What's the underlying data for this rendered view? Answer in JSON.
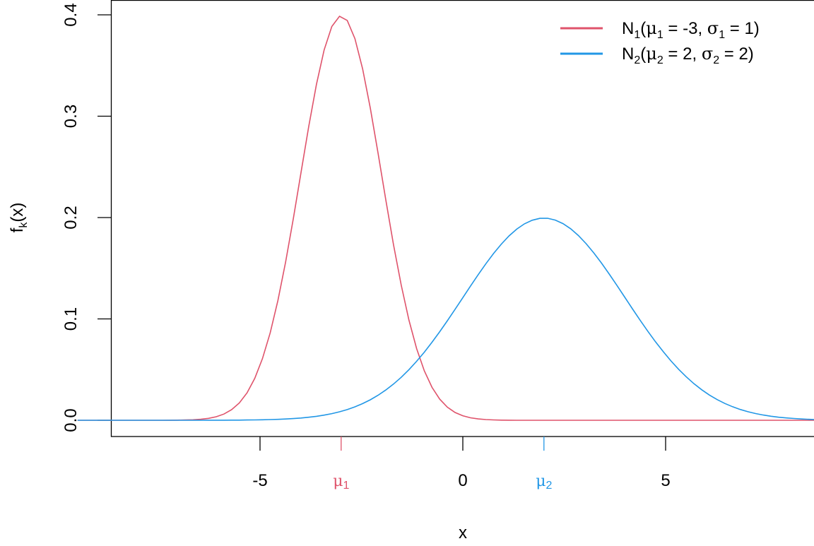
{
  "chart_data": {
    "type": "line",
    "title": "",
    "xlabel": "x",
    "ylabel": "f_k(x)",
    "xlim": [
      -9.5,
      9.5
    ],
    "ylim": [
      0,
      0.4
    ],
    "grid": false,
    "legend_position": "topright",
    "x_ticks": [
      -5,
      0,
      5
    ],
    "x_tick_labels": [
      "-5",
      "0",
      "5"
    ],
    "y_ticks": [
      0.0,
      0.1,
      0.2,
      0.3,
      0.4
    ],
    "y_tick_labels": [
      "0.0",
      "0.1",
      "0.2",
      "0.3",
      "0.4"
    ],
    "annotations": [
      {
        "type": "axis-tick",
        "x": -3,
        "label": "μ1",
        "color": "#DF536B"
      },
      {
        "type": "axis-tick",
        "x": 2,
        "label": "μ2",
        "color": "#2297E6"
      }
    ],
    "series": [
      {
        "name": "N1(μ1 = -3, σ1 = 1)",
        "distribution": "normal",
        "mean": -3,
        "sd": 1,
        "color": "#DF536B",
        "peak": 0.399
      },
      {
        "name": "N2(μ2 = 2, σ2 = 2)",
        "distribution": "normal",
        "mean": 2,
        "sd": 2,
        "color": "#2297E6",
        "peak": 0.199
      }
    ]
  },
  "axes": {
    "xlabel": "x",
    "ylabel_main": "f",
    "ylabel_sub": "k",
    "ylabel_tail": "(x)"
  },
  "legend": {
    "items": [
      {
        "N": "N",
        "sub": "1",
        "mu": "μ",
        "mu_sub": "1",
        "mid": " = -3, ",
        "sigma": "σ",
        "sigma_sub": "1",
        "tail": " = 1)",
        "color": "#DF536B"
      },
      {
        "N": "N",
        "sub": "2",
        "mu": "μ",
        "mu_sub": "2",
        "mid": " = 2, ",
        "sigma": "σ",
        "sigma_sub": "2",
        "tail": " = 2)",
        "color": "#2297E6"
      }
    ]
  },
  "mu_labels": [
    {
      "sym": "μ",
      "sub": "1",
      "color": "#DF536B"
    },
    {
      "sym": "μ",
      "sub": "2",
      "color": "#2297E6"
    }
  ]
}
